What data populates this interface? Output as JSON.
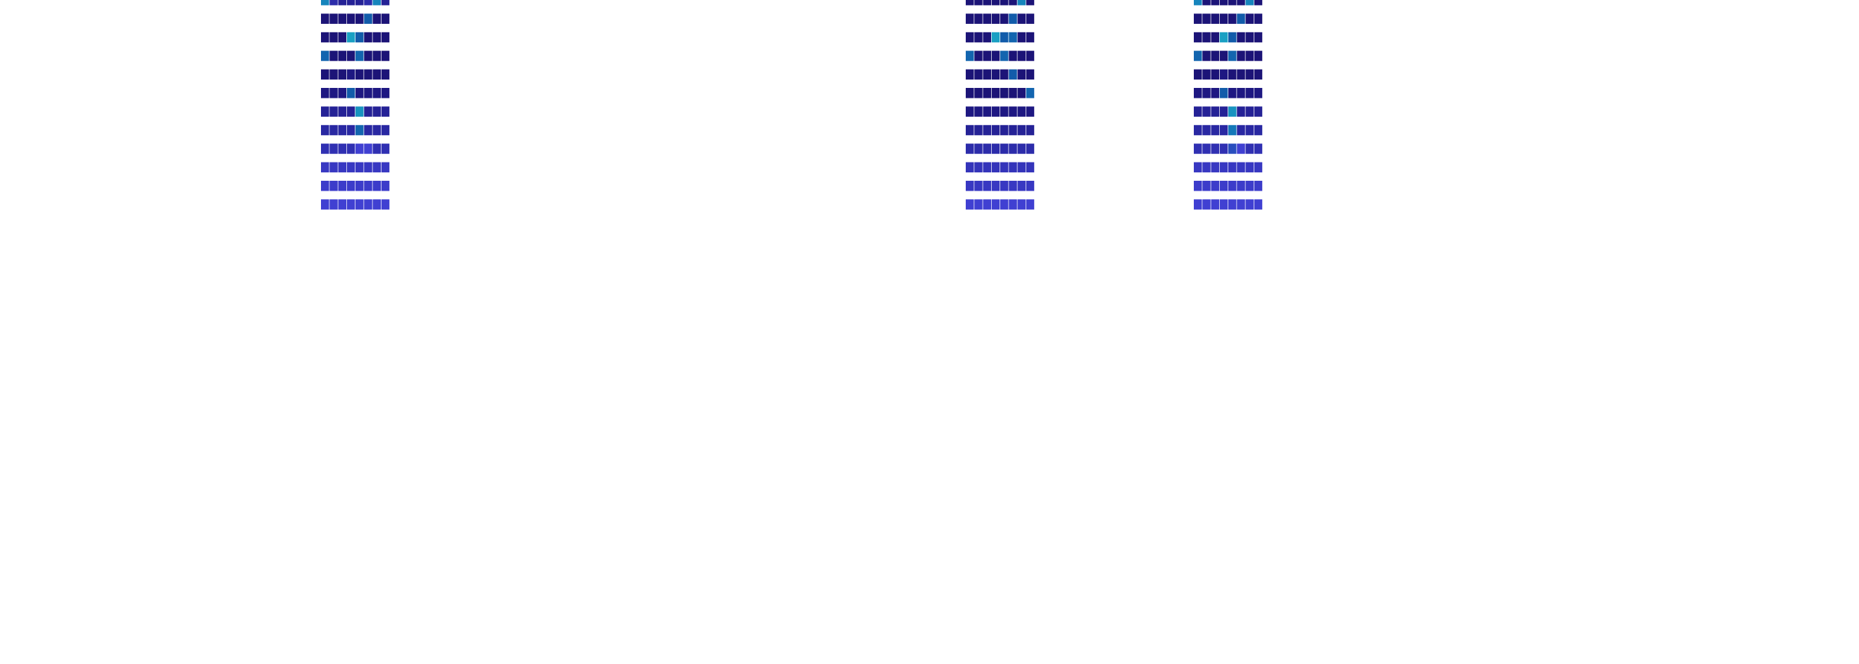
{
  "chart_data": [
    {
      "type": "heatmap",
      "name": "heatmap-left",
      "rows": 12,
      "cols": 8,
      "matrix": [
        [
          0.6,
          0.2,
          0.15,
          0.15,
          0.15,
          0.2,
          0.6,
          0.15
        ],
        [
          0.05,
          0.05,
          0.05,
          0.05,
          0.05,
          0.4,
          0.05,
          0.05
        ],
        [
          0.05,
          0.05,
          0.05,
          0.7,
          0.4,
          0.05,
          0.05,
          0.05
        ],
        [
          0.45,
          0.05,
          0.05,
          0.05,
          0.45,
          0.05,
          0.05,
          0.05
        ],
        [
          0.05,
          0.05,
          0.05,
          0.1,
          0.05,
          0.05,
          0.05,
          0.05
        ],
        [
          0.1,
          0.1,
          0.1,
          0.4,
          0.1,
          0.1,
          0.1,
          0.1
        ],
        [
          0.15,
          0.15,
          0.15,
          0.15,
          0.65,
          0.15,
          0.15,
          0.15
        ],
        [
          0.18,
          0.18,
          0.18,
          0.18,
          0.45,
          0.18,
          0.18,
          0.18
        ],
        [
          0.22,
          0.22,
          0.22,
          0.22,
          0.3,
          0.3,
          0.22,
          0.22
        ],
        [
          0.26,
          0.26,
          0.26,
          0.26,
          0.26,
          0.26,
          0.26,
          0.26
        ],
        [
          0.28,
          0.28,
          0.28,
          0.28,
          0.28,
          0.28,
          0.28,
          0.28
        ],
        [
          0.3,
          0.3,
          0.3,
          0.3,
          0.3,
          0.3,
          0.3,
          0.3
        ]
      ]
    },
    {
      "type": "heatmap",
      "name": "heatmap-middle",
      "rows": 12,
      "cols": 8,
      "matrix": [
        [
          0.05,
          0.05,
          0.05,
          0.05,
          0.05,
          0.05,
          0.6,
          0.05
        ],
        [
          0.05,
          0.05,
          0.05,
          0.05,
          0.05,
          0.4,
          0.05,
          0.05
        ],
        [
          0.05,
          0.05,
          0.05,
          0.7,
          0.4,
          0.45,
          0.05,
          0.05
        ],
        [
          0.45,
          0.05,
          0.05,
          0.05,
          0.45,
          0.05,
          0.05,
          0.05
        ],
        [
          0.05,
          0.05,
          0.05,
          0.05,
          0.05,
          0.4,
          0.05,
          0.05
        ],
        [
          0.05,
          0.05,
          0.05,
          0.05,
          0.05,
          0.05,
          0.05,
          0.45
        ],
        [
          0.1,
          0.1,
          0.1,
          0.1,
          0.1,
          0.1,
          0.1,
          0.1
        ],
        [
          0.15,
          0.15,
          0.15,
          0.15,
          0.15,
          0.15,
          0.15,
          0.15
        ],
        [
          0.2,
          0.2,
          0.2,
          0.2,
          0.2,
          0.2,
          0.2,
          0.2
        ],
        [
          0.24,
          0.24,
          0.24,
          0.24,
          0.24,
          0.24,
          0.24,
          0.24
        ],
        [
          0.26,
          0.26,
          0.26,
          0.26,
          0.26,
          0.26,
          0.26,
          0.26
        ],
        [
          0.3,
          0.3,
          0.3,
          0.3,
          0.3,
          0.3,
          0.3,
          0.3
        ]
      ]
    },
    {
      "type": "heatmap",
      "name": "heatmap-right",
      "rows": 12,
      "cols": 8,
      "matrix": [
        [
          0.6,
          0.05,
          0.05,
          0.05,
          0.05,
          0.05,
          0.6,
          0.05
        ],
        [
          0.05,
          0.05,
          0.05,
          0.05,
          0.05,
          0.4,
          0.05,
          0.05
        ],
        [
          0.05,
          0.05,
          0.05,
          0.7,
          0.4,
          0.05,
          0.05,
          0.05
        ],
        [
          0.45,
          0.05,
          0.05,
          0.05,
          0.45,
          0.05,
          0.05,
          0.05
        ],
        [
          0.05,
          0.05,
          0.05,
          0.1,
          0.05,
          0.05,
          0.05,
          0.05
        ],
        [
          0.1,
          0.1,
          0.1,
          0.4,
          0.1,
          0.1,
          0.1,
          0.1
        ],
        [
          0.15,
          0.15,
          0.15,
          0.15,
          0.65,
          0.15,
          0.15,
          0.15
        ],
        [
          0.18,
          0.18,
          0.18,
          0.18,
          0.55,
          0.18,
          0.18,
          0.18
        ],
        [
          0.22,
          0.22,
          0.22,
          0.22,
          0.35,
          0.3,
          0.22,
          0.22
        ],
        [
          0.26,
          0.26,
          0.26,
          0.26,
          0.26,
          0.26,
          0.26,
          0.26
        ],
        [
          0.28,
          0.28,
          0.28,
          0.28,
          0.28,
          0.28,
          0.28,
          0.28
        ],
        [
          0.3,
          0.3,
          0.3,
          0.3,
          0.3,
          0.3,
          0.3,
          0.3
        ]
      ]
    }
  ],
  "colors": {
    "background": "#ffffff",
    "scale": [
      "#1a0f6b",
      "#2a2aa8",
      "#4040d0",
      "#1060a8",
      "#1aa0c0"
    ]
  }
}
